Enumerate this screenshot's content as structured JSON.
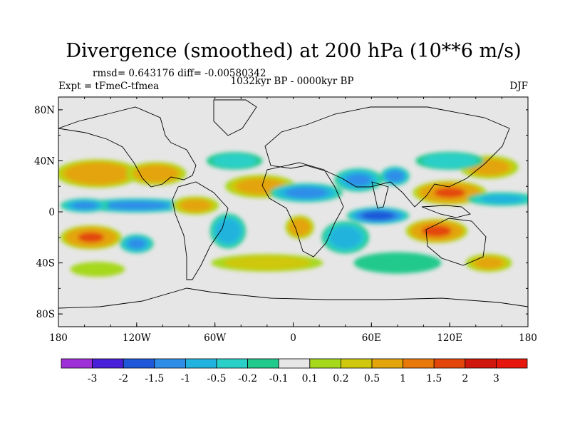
{
  "chart_data": {
    "type": "heatmap",
    "title": "Divergence (smoothed) at 200 hPa (10**6 m/s)",
    "stats": "rmsd= 0.643176 diff= -0.00580342",
    "experiment": "Expt = tFmeC-tfmea",
    "period": "1032kyr BP - 0000kyr BP",
    "season": "DJF",
    "x_ticks": [
      {
        "value": -180,
        "label": "180"
      },
      {
        "value": -120,
        "label": "120W"
      },
      {
        "value": -60,
        "label": "60W"
      },
      {
        "value": 0,
        "label": "0"
      },
      {
        "value": 60,
        "label": "60E"
      },
      {
        "value": 120,
        "label": "120E"
      },
      {
        "value": 180,
        "label": "180"
      }
    ],
    "y_ticks": [
      {
        "value": 80,
        "label": "80N"
      },
      {
        "value": 40,
        "label": "40N"
      },
      {
        "value": 0,
        "label": "0"
      },
      {
        "value": -40,
        "label": "40S"
      },
      {
        "value": -80,
        "label": "80S"
      }
    ],
    "xlim": [
      -180,
      180
    ],
    "ylim": [
      -90,
      90
    ],
    "colorbar": {
      "levels": [
        "-3",
        "-2",
        "-1.5",
        "-1",
        "-0.5",
        "-0.2",
        "-0.1",
        "0.1",
        "0.2",
        "0.5",
        "1",
        "1.5",
        "2",
        "3"
      ],
      "colors": [
        "#9f2fd6",
        "#4a1fd9",
        "#1e58d8",
        "#2f8de8",
        "#21b3dd",
        "#2ad0c8",
        "#22c98c",
        "#e6e6e6",
        "#a6d81c",
        "#cfc80f",
        "#e3a40c",
        "#e9780a",
        "#e3460a",
        "#cf170d",
        "#e6180e"
      ]
    },
    "blobs": [
      {
        "lon": -150,
        "lat": 30,
        "rx": 35,
        "ry": 12,
        "value": 1.2
      },
      {
        "lon": -105,
        "lat": 30,
        "rx": 25,
        "ry": 10,
        "value": 1.0
      },
      {
        "lon": -155,
        "lat": -20,
        "rx": 25,
        "ry": 10,
        "value": 1.6
      },
      {
        "lon": -120,
        "lat": -25,
        "rx": 14,
        "ry": 8,
        "value": -1.0
      },
      {
        "lon": -120,
        "lat": 5,
        "rx": 45,
        "ry": 6,
        "value": -1.2
      },
      {
        "lon": -160,
        "lat": 5,
        "rx": 20,
        "ry": 6,
        "value": -1.0
      },
      {
        "lon": -50,
        "lat": -15,
        "rx": 15,
        "ry": 15,
        "value": -0.9
      },
      {
        "lon": -75,
        "lat": 5,
        "rx": 20,
        "ry": 8,
        "value": 0.7
      },
      {
        "lon": -25,
        "lat": 20,
        "rx": 30,
        "ry": 10,
        "value": 0.8
      },
      {
        "lon": 10,
        "lat": 15,
        "rx": 30,
        "ry": 8,
        "value": -1.2
      },
      {
        "lon": 5,
        "lat": -12,
        "rx": 12,
        "ry": 10,
        "value": 1.0
      },
      {
        "lon": 40,
        "lat": -20,
        "rx": 20,
        "ry": 14,
        "value": -0.8
      },
      {
        "lon": 65,
        "lat": -3,
        "rx": 25,
        "ry": 7,
        "value": -2.0
      },
      {
        "lon": 50,
        "lat": 25,
        "rx": 20,
        "ry": 10,
        "value": -1.0
      },
      {
        "lon": 78,
        "lat": 28,
        "rx": 12,
        "ry": 8,
        "value": -1.3
      },
      {
        "lon": 120,
        "lat": 15,
        "rx": 30,
        "ry": 10,
        "value": 1.6
      },
      {
        "lon": 110,
        "lat": -15,
        "rx": 25,
        "ry": 10,
        "value": 1.8
      },
      {
        "lon": 160,
        "lat": 10,
        "rx": 30,
        "ry": 6,
        "value": -0.6
      },
      {
        "lon": 150,
        "lat": 35,
        "rx": 25,
        "ry": 10,
        "value": 0.8
      },
      {
        "lon": 120,
        "lat": 40,
        "rx": 30,
        "ry": 8,
        "value": -0.5
      },
      {
        "lon": -45,
        "lat": 40,
        "rx": 25,
        "ry": 8,
        "value": -0.4
      },
      {
        "lon": -20,
        "lat": -40,
        "rx": 50,
        "ry": 8,
        "value": 0.4
      },
      {
        "lon": 80,
        "lat": -40,
        "rx": 40,
        "ry": 10,
        "value": -0.3
      },
      {
        "lon": 150,
        "lat": -40,
        "rx": 20,
        "ry": 8,
        "value": 0.6
      },
      {
        "lon": -150,
        "lat": -45,
        "rx": 25,
        "ry": 7,
        "value": 0.3
      }
    ]
  }
}
